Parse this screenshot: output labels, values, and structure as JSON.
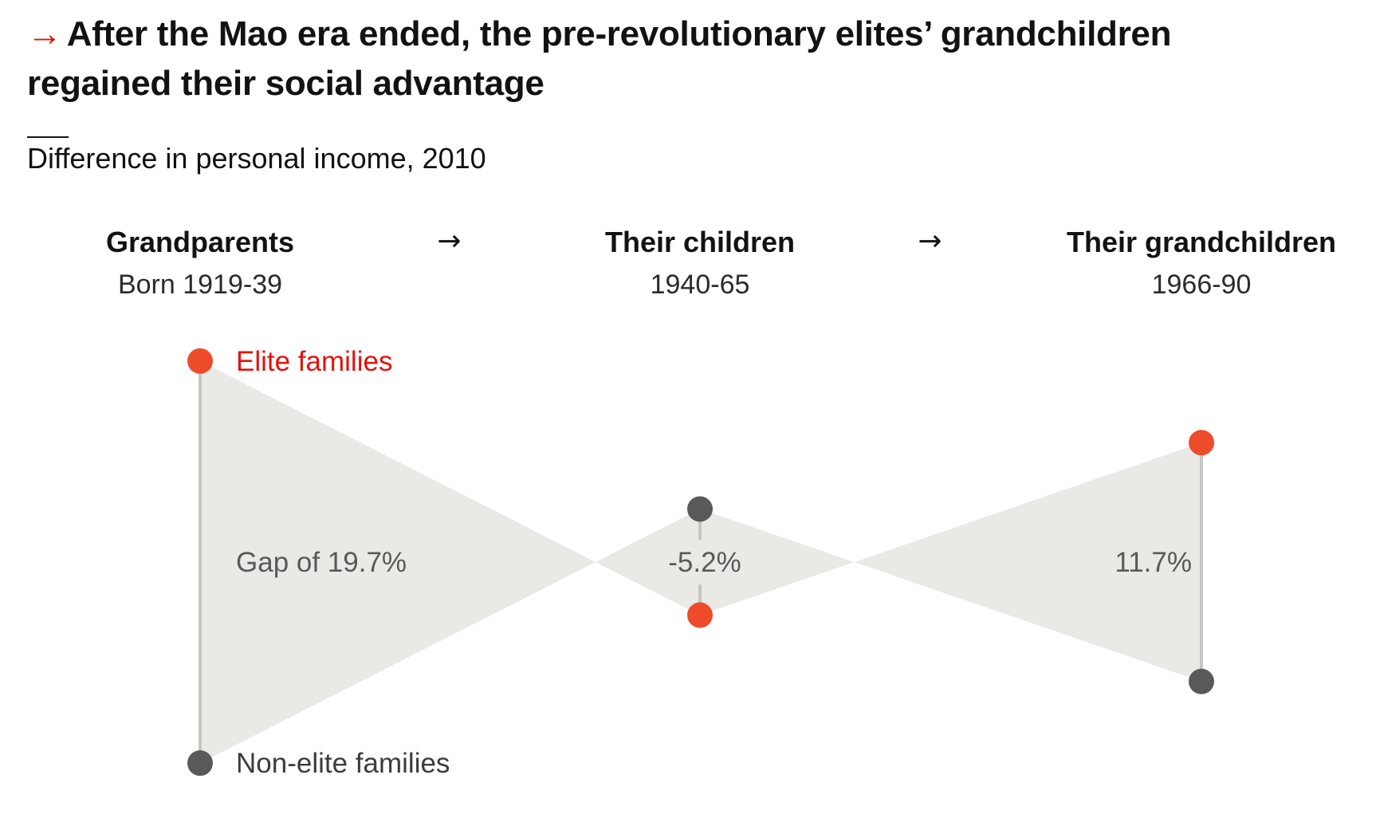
{
  "headline": {
    "arrow": "→",
    "text": "After the Mao era ended, the pre-revolutionary elites’ grandchildren regained their social advantage"
  },
  "subtitle": "Difference in personal income, 2010",
  "colors": {
    "elite": "#ee4b2b",
    "elite_text": "#e3120b",
    "non_elite": "#595959",
    "area": "#e9e9e6",
    "connector": "#c8c6c1"
  },
  "chart_data": {
    "type": "dot-gap",
    "title": "After the Mao era ended, the pre-revolutionary elites’ grandchildren regained their social advantage",
    "subtitle": "Difference in personal income, 2010",
    "generations": [
      {
        "title": "Grandparents",
        "years": "Born 1919-39",
        "gap": 19.7,
        "gap_label": "Gap of 19.7%"
      },
      {
        "title": "Their children",
        "years": "1940-65",
        "gap": -5.2,
        "gap_label": "-5.2%"
      },
      {
        "title": "Their grandchildren",
        "years": "1966-90",
        "gap": 11.7,
        "gap_label": "11.7%"
      }
    ],
    "series": [
      {
        "name": "Elite families",
        "values": [
          9.85,
          -2.6,
          5.85
        ]
      },
      {
        "name": "Non-elite families",
        "values": [
          -9.85,
          2.6,
          -5.85
        ]
      }
    ],
    "arrow": "→",
    "unit": "%"
  }
}
